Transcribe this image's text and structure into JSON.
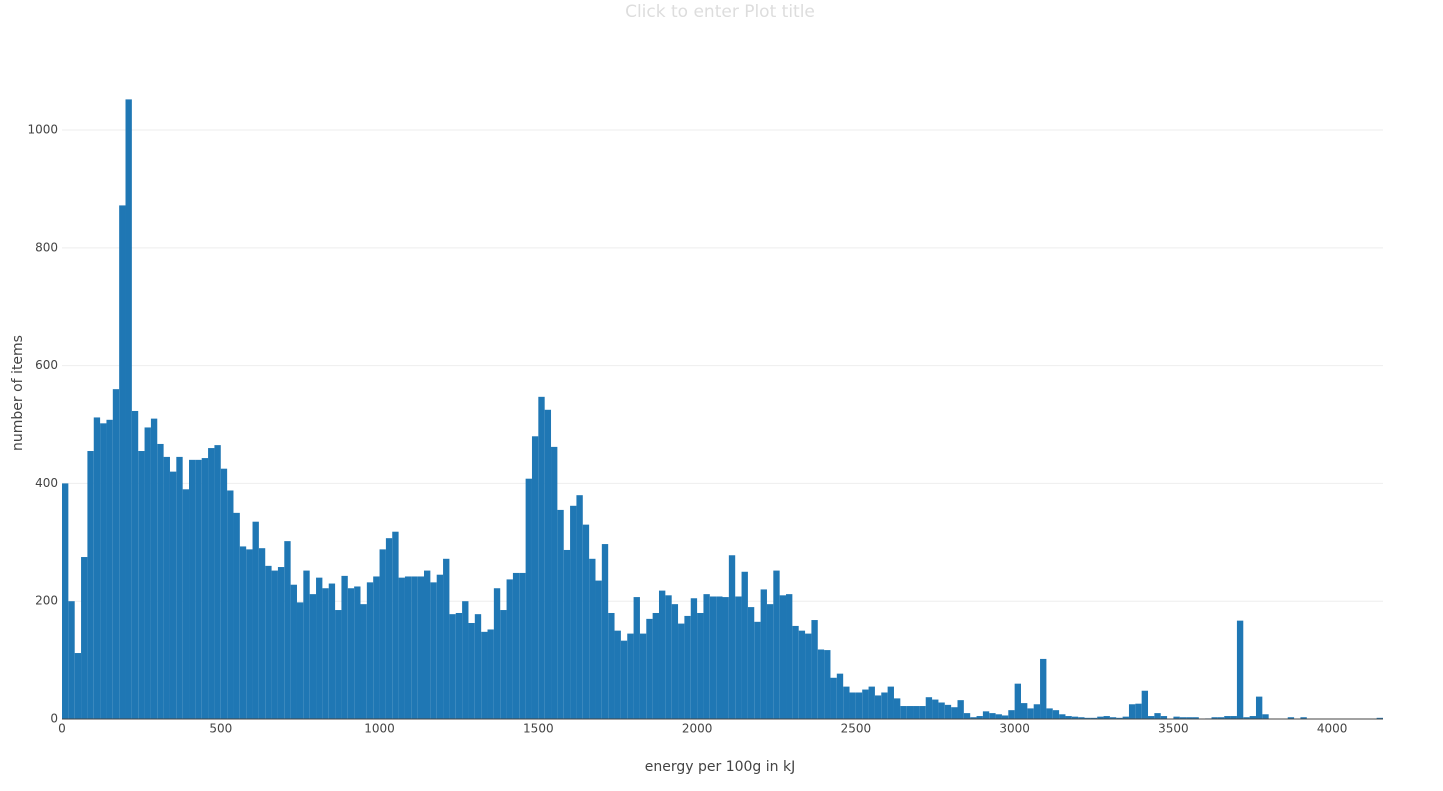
{
  "chart_data": {
    "type": "histogram",
    "title": "Click to enter Plot title",
    "x_label": "energy per 100g in kJ",
    "y_label": "number of items",
    "color": "#1f77b4",
    "grid": true,
    "xlim": [
      0,
      4160
    ],
    "ylim": [
      0,
      1107
    ],
    "xticks": [
      0,
      500,
      1000,
      1500,
      2000,
      2500,
      3000,
      3500,
      4000
    ],
    "yticks": [
      0,
      200,
      400,
      600,
      800,
      1000
    ],
    "bins": [
      0,
      20,
      40,
      60,
      80,
      100,
      120,
      140,
      160,
      180,
      200,
      220,
      240,
      260,
      280,
      300,
      320,
      340,
      360,
      380,
      400,
      420,
      440,
      460,
      480,
      500,
      520,
      540,
      560,
      580,
      600,
      620,
      640,
      660,
      680,
      700,
      720,
      740,
      760,
      780,
      800,
      820,
      840,
      860,
      880,
      900,
      920,
      940,
      960,
      980,
      1000,
      1020,
      1040,
      1060,
      1080,
      1100,
      1120,
      1140,
      1160,
      1180,
      1200,
      1220,
      1240,
      1260,
      1280,
      1300,
      1320,
      1340,
      1360,
      1380,
      1400,
      1420,
      1440,
      1460,
      1480,
      1500,
      1520,
      1540,
      1560,
      1580,
      1600,
      1620,
      1640,
      1660,
      1680,
      1700,
      1720,
      1740,
      1760,
      1780,
      1800,
      1820,
      1840,
      1860,
      1880,
      1900,
      1920,
      1940,
      1960,
      1980,
      2000,
      2020,
      2040,
      2060,
      2080,
      2100,
      2120,
      2140,
      2160,
      2180,
      2200,
      2220,
      2240,
      2260,
      2280,
      2300,
      2320,
      2340,
      2360,
      2380,
      2400,
      2420,
      2440,
      2460,
      2480,
      2500,
      2520,
      2540,
      2560,
      2580,
      2600,
      2620,
      2640,
      2660,
      2680,
      2700,
      2720,
      2740,
      2760,
      2780,
      2800,
      2820,
      2840,
      2860,
      2880,
      2900,
      2920,
      2940,
      2960,
      2980,
      3000,
      3020,
      3040,
      3060,
      3080,
      3100,
      3120,
      3140,
      3160,
      3180,
      3200,
      3220,
      3240,
      3260,
      3280,
      3300,
      3320,
      3340,
      3360,
      3380,
      3400,
      3420,
      3440,
      3460,
      3480,
      3500,
      3520,
      3540,
      3560,
      3580,
      3600,
      3620,
      3640,
      3660,
      3680,
      3700,
      3720,
      3740,
      3760,
      3780,
      3800,
      3820,
      3840,
      3860,
      3880,
      3900,
      3920,
      3940,
      3960,
      3980,
      4000,
      4020,
      4040,
      4060,
      4080,
      4100,
      4120,
      4140,
      4160
    ],
    "counts": [
      400,
      200,
      112,
      275,
      455,
      512,
      502,
      508,
      560,
      872,
      1052,
      523,
      455,
      495,
      510,
      467,
      445,
      420,
      445,
      390,
      440,
      440,
      443,
      460,
      465,
      425,
      388,
      350,
      293,
      288,
      335,
      290,
      260,
      252,
      258,
      302,
      228,
      198,
      252,
      212,
      240,
      222,
      230,
      185,
      243,
      222,
      225,
      195,
      232,
      242,
      288,
      307,
      318,
      240,
      242,
      242,
      242,
      252,
      232,
      245,
      272,
      178,
      180,
      200,
      163,
      178,
      148,
      152,
      222,
      185,
      237,
      248,
      248,
      408,
      480,
      547,
      525,
      462,
      355,
      287,
      362,
      380,
      330,
      272,
      235,
      297,
      180,
      150,
      133,
      145,
      207,
      145,
      170,
      180,
      218,
      210,
      195,
      162,
      175,
      205,
      180,
      212,
      208,
      208,
      207,
      278,
      208,
      250,
      190,
      165,
      220,
      195,
      252,
      210,
      212,
      158,
      150,
      145,
      168,
      118,
      117,
      70,
      77,
      55,
      45,
      45,
      50,
      55,
      40,
      45,
      55,
      35,
      22,
      22,
      22,
      22,
      37,
      33,
      28,
      24,
      20,
      32,
      10,
      3,
      5,
      13,
      10,
      8,
      6,
      15,
      60,
      27,
      18,
      25,
      102,
      18,
      15,
      8,
      5,
      4,
      3,
      2,
      2,
      4,
      5,
      3,
      2,
      4,
      25,
      26,
      48,
      5,
      10,
      5,
      0,
      4,
      3,
      3,
      3,
      0,
      1,
      3,
      3,
      5,
      5,
      167,
      3,
      5,
      38,
      8,
      0,
      0,
      0,
      3,
      0,
      3,
      0,
      0,
      0,
      0,
      0,
      0,
      0,
      0,
      0,
      0,
      0,
      2
    ]
  }
}
